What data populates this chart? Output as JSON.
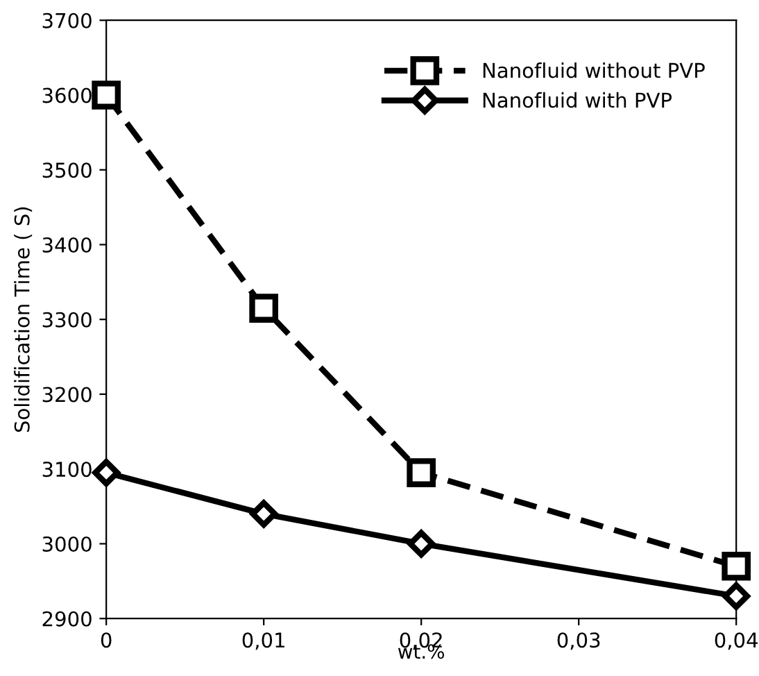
{
  "chart_data": {
    "type": "line",
    "xlabel": "wt.%",
    "ylabel": "Solidification Time ( S)",
    "x": [
      0,
      0.01,
      0.02,
      0.04
    ],
    "series": [
      {
        "name": "Nanofluid without PVP",
        "color": "#000000",
        "values": [
          3600,
          3315,
          3095,
          2970
        ],
        "marker": "square",
        "line_style": "dashed"
      },
      {
        "name": "Nanofluid with PVP",
        "color": "#000000",
        "values": [
          3095,
          3040,
          3000,
          2930
        ],
        "marker": "diamond",
        "line_style": "solid"
      }
    ],
    "xlim": [
      0,
      0.04
    ],
    "xticks": [
      0,
      {
        "value": 0.01,
        "label": "0,01"
      },
      {
        "value": 0.02,
        "label": "0,02"
      },
      {
        "value": 0.03,
        "label": "0,03"
      },
      {
        "value": 0.04,
        "label": "0,04"
      }
    ],
    "ylim": [
      2900,
      3700
    ],
    "yticks": [
      2900,
      3000,
      3100,
      3200,
      3300,
      3400,
      3500,
      3600,
      3700
    ],
    "grid": false,
    "legend": "top right"
  }
}
